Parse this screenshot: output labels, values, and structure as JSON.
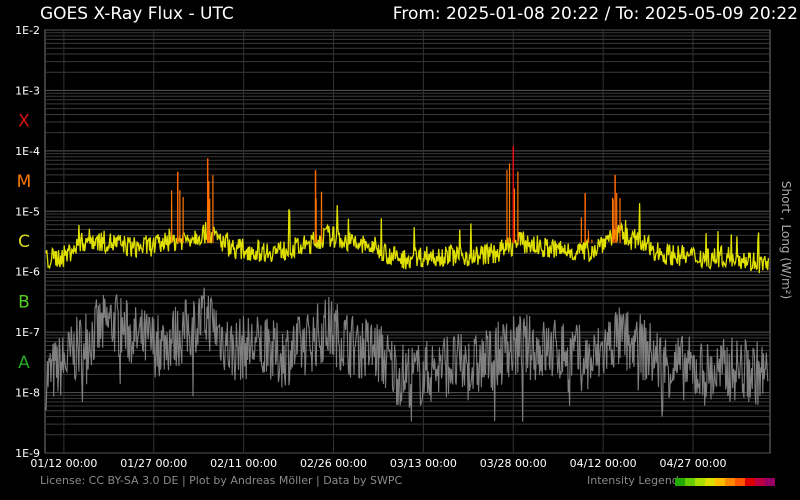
{
  "header": {
    "title": "GOES X-Ray Flux - UTC",
    "range": "From: 2025-01-08 20:22  /  To: 2025-05-09 20:22"
  },
  "footer": {
    "license": "License: CC BY-SA 3.0 DE | Plot by Andreas Möller | Data by SWPC",
    "legend_label": "Intensity Legend",
    "legend_colors": [
      "#22aa00",
      "#66cc00",
      "#aadd00",
      "#dddd00",
      "#ffbb00",
      "#ff8800",
      "#ff5500",
      "#dd0000",
      "#bb0044",
      "#990066"
    ]
  },
  "chart_data": {
    "type": "line",
    "y_scale": "log",
    "ylim": [
      1e-09,
      0.01
    ],
    "ylabel": "Short , Long (W/m²)",
    "y_ticks": [
      "1E-9",
      "1E-8",
      "1E-7",
      "1E-6",
      "1E-5",
      "1E-4",
      "1E-3",
      "1E-2"
    ],
    "class_labels": [
      {
        "label": "A",
        "flux": 3.2e-08,
        "color": "#22aa22"
      },
      {
        "label": "B",
        "flux": 3.2e-07,
        "color": "#55cc22"
      },
      {
        "label": "C",
        "flux": 3.2e-06,
        "color": "#dddd22"
      },
      {
        "label": "M",
        "flux": 3.2e-05,
        "color": "#ff7700"
      },
      {
        "label": "X",
        "flux": 0.00032,
        "color": "#dd1111"
      }
    ],
    "x_range": [
      "2025-01-08 20:22",
      "2025-05-09 20:22"
    ],
    "x_ticks": [
      {
        "label": "01/12 00:00",
        "date": "2025-01-12"
      },
      {
        "label": "01/27 00:00",
        "date": "2025-01-27"
      },
      {
        "label": "02/11 00:00",
        "date": "2025-02-11"
      },
      {
        "label": "02/26 00:00",
        "date": "2025-02-26"
      },
      {
        "label": "03/13 00:00",
        "date": "2025-03-13"
      },
      {
        "label": "03/28 00:00",
        "date": "2025-03-28"
      },
      {
        "label": "04/12 00:00",
        "date": "2025-04-12"
      },
      {
        "label": "04/27 00:00",
        "date": "2025-04-27"
      }
    ],
    "grid": true,
    "series": [
      {
        "color": "#e0e000",
        "dates": [
          "2025-01-08",
          "2025-01-12",
          "2025-01-16",
          "2025-01-20",
          "2025-01-24",
          "2025-01-28",
          "2025-02-01",
          "2025-02-05",
          "2025-02-09",
          "2025-02-13",
          "2025-02-17",
          "2025-02-21",
          "2025-02-25",
          "2025-03-01",
          "2025-03-05",
          "2025-03-09",
          "2025-03-13",
          "2025-03-17",
          "2025-03-21",
          "2025-03-25",
          "2025-03-29",
          "2025-04-02",
          "2025-04-06",
          "2025-04-10",
          "2025-04-14",
          "2025-04-18",
          "2025-04-22",
          "2025-04-26",
          "2025-04-30",
          "2025-05-04",
          "2025-05-09"
        ],
        "values": [
          1.5e-06,
          1.8e-06,
          3.5e-06,
          3e-06,
          2.5e-06,
          2.8e-06,
          3.5e-06,
          4.5e-06,
          2.5e-06,
          2.2e-06,
          2.2e-06,
          2.6e-06,
          4e-06,
          3e-06,
          2.5e-06,
          1.6e-06,
          1.8e-06,
          1.9e-06,
          1.8e-06,
          2e-06,
          3.2e-06,
          2.5e-06,
          2.2e-06,
          2.2e-06,
          4.5e-06,
          3e-06,
          2e-06,
          1.8e-06,
          1.7e-06,
          1.8e-06,
          1.3e-06
        ]
      },
      {
        "color": "#808080",
        "dates": [
          "2025-01-08",
          "2025-01-12",
          "2025-01-16",
          "2025-01-20",
          "2025-01-24",
          "2025-01-28",
          "2025-02-01",
          "2025-02-05",
          "2025-02-09",
          "2025-02-13",
          "2025-02-17",
          "2025-02-21",
          "2025-02-25",
          "2025-03-01",
          "2025-03-05",
          "2025-03-09",
          "2025-03-13",
          "2025-03-17",
          "2025-03-21",
          "2025-03-25",
          "2025-03-29",
          "2025-04-02",
          "2025-04-06",
          "2025-04-10",
          "2025-04-14",
          "2025-04-18",
          "2025-04-22",
          "2025-04-26",
          "2025-04-30",
          "2025-05-04",
          "2025-05-09"
        ],
        "values": [
          1.5e-08,
          3e-08,
          8e-08,
          1.5e-07,
          8e-08,
          6e-08,
          1e-07,
          1.8e-07,
          5e-08,
          6e-08,
          4e-08,
          6e-08,
          1.2e-07,
          6e-08,
          5e-08,
          2e-08,
          2e-08,
          3e-08,
          2.5e-08,
          4e-08,
          6e-08,
          5e-08,
          5e-08,
          3e-08,
          8e-08,
          6e-08,
          3e-08,
          2.5e-08,
          2e-08,
          2.5e-08,
          2e-08
        ]
      }
    ],
    "annotations": [
      {
        "date": "2025-01-31",
        "flux": 4.5e-05
      },
      {
        "date": "2025-02-05",
        "flux": 7.5e-05
      },
      {
        "date": "2025-02-23",
        "flux": 4.8e-05
      },
      {
        "date": "2025-03-28",
        "flux": 0.00012
      },
      {
        "date": "2025-04-09",
        "flux": 2e-05
      },
      {
        "date": "2025-04-14",
        "flux": 4e-05
      }
    ]
  }
}
